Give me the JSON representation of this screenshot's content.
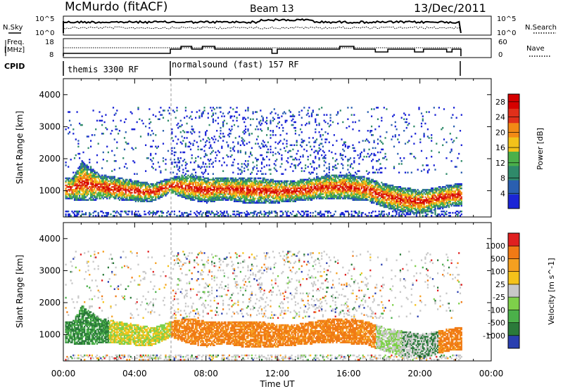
{
  "header": {
    "station": "McMurdo (fitACF)",
    "beam": "Beam 13",
    "date": "13/Dec/2011"
  },
  "status_panels": {
    "nsky_label": "N.Sky",
    "nsky_ticks": [
      "10^5",
      "10^0"
    ],
    "nsearch_label": "N.Search",
    "nsearch_ticks": [
      "10^5",
      "10^0"
    ],
    "freq_label": "Freq.",
    "freq_unit": "[MHz]",
    "freq_ticks": [
      "18",
      "8"
    ],
    "nave_label": "Nave",
    "nave_ticks": [
      "60",
      "0"
    ],
    "cpid_label": "CPID",
    "cpid_segments": [
      {
        "name": "themis 3300 RF",
        "start_hour": 0.0,
        "end_hour": 6.0
      },
      {
        "name": "normalsound (fast) 157 RF",
        "start_hour": 6.0,
        "end_hour": 22.3
      }
    ]
  },
  "chart_data": [
    {
      "type": "heatmap",
      "title": "Power",
      "ylabel": "Slant Range [km]",
      "xlabel": "Time UT",
      "x_ticks": [
        "00:00",
        "04:00",
        "08:00",
        "12:00",
        "16:00",
        "20:00",
        "00:00"
      ],
      "xlim_hours": [
        0,
        24
      ],
      "y_ticks": [
        1000,
        2000,
        3000,
        4000
      ],
      "ylim": [
        180,
        4500
      ],
      "colorbar": {
        "label": "Power [dB]",
        "ticks": [
          4,
          8,
          12,
          16,
          20,
          24,
          28
        ],
        "range": [
          0,
          30
        ],
        "colors": [
          "#1b24d6",
          "#2a5fb0",
          "#2f8a6a",
          "#4bb04a",
          "#f2c21a",
          "#f28a15",
          "#e0301a",
          "#d60000"
        ]
      },
      "data_extent_hours": [
        0.0,
        22.3
      ],
      "main_echo_band_km": [
        {
          "hour": 0.5,
          "lower": 700,
          "upper": 1400
        },
        {
          "hour": 1.0,
          "lower": 650,
          "upper": 1900
        },
        {
          "hour": 2.0,
          "lower": 700,
          "upper": 1500
        },
        {
          "hour": 3.0,
          "lower": 700,
          "upper": 1400
        },
        {
          "hour": 4.0,
          "lower": 650,
          "upper": 1300
        },
        {
          "hour": 5.0,
          "lower": 650,
          "upper": 1200
        },
        {
          "hour": 6.0,
          "lower": 900,
          "upper": 1400
        },
        {
          "hour": 7.0,
          "lower": 700,
          "upper": 1500
        },
        {
          "hour": 8.0,
          "lower": 600,
          "upper": 1400
        },
        {
          "hour": 9.0,
          "lower": 700,
          "upper": 1400
        },
        {
          "hour": 10.0,
          "lower": 600,
          "upper": 1400
        },
        {
          "hour": 11.0,
          "lower": 600,
          "upper": 1400
        },
        {
          "hour": 12.0,
          "lower": 600,
          "upper": 1300
        },
        {
          "hour": 13.0,
          "lower": 650,
          "upper": 1300
        },
        {
          "hour": 14.0,
          "lower": 700,
          "upper": 1400
        },
        {
          "hour": 15.0,
          "lower": 700,
          "upper": 1500
        },
        {
          "hour": 16.0,
          "lower": 700,
          "upper": 1500
        },
        {
          "hour": 17.0,
          "lower": 650,
          "upper": 1400
        },
        {
          "hour": 18.0,
          "lower": 450,
          "upper": 1200
        },
        {
          "hour": 19.0,
          "lower": 300,
          "upper": 1100
        },
        {
          "hour": 20.0,
          "lower": 250,
          "upper": 1000
        },
        {
          "hour": 21.0,
          "lower": 400,
          "upper": 1100
        },
        {
          "hour": 22.0,
          "lower": 500,
          "upper": 1200
        }
      ]
    },
    {
      "type": "heatmap",
      "title": "Velocity",
      "ylabel": "Slant Range [km]",
      "xlabel": "Time UT",
      "x_ticks": [
        "00:00",
        "04:00",
        "08:00",
        "12:00",
        "16:00",
        "20:00",
        "00:00"
      ],
      "xlim_hours": [
        0,
        24
      ],
      "y_ticks": [
        1000,
        2000,
        3000,
        4000
      ],
      "ylim": [
        180,
        4500
      ],
      "colorbar": {
        "label": "Velocity [m s^-1]",
        "ticks": [
          1000,
          500,
          100,
          25,
          -25,
          -100,
          -500,
          -1000
        ],
        "colors": [
          "#2a3fb0",
          "#2b7a3a",
          "#4bb04a",
          "#7ed04a",
          "#c8c8c8",
          "#f5c21a",
          "#f5a020",
          "#f07a15",
          "#e02020"
        ]
      },
      "data_extent_hours": [
        0.0,
        22.3
      ]
    }
  ]
}
